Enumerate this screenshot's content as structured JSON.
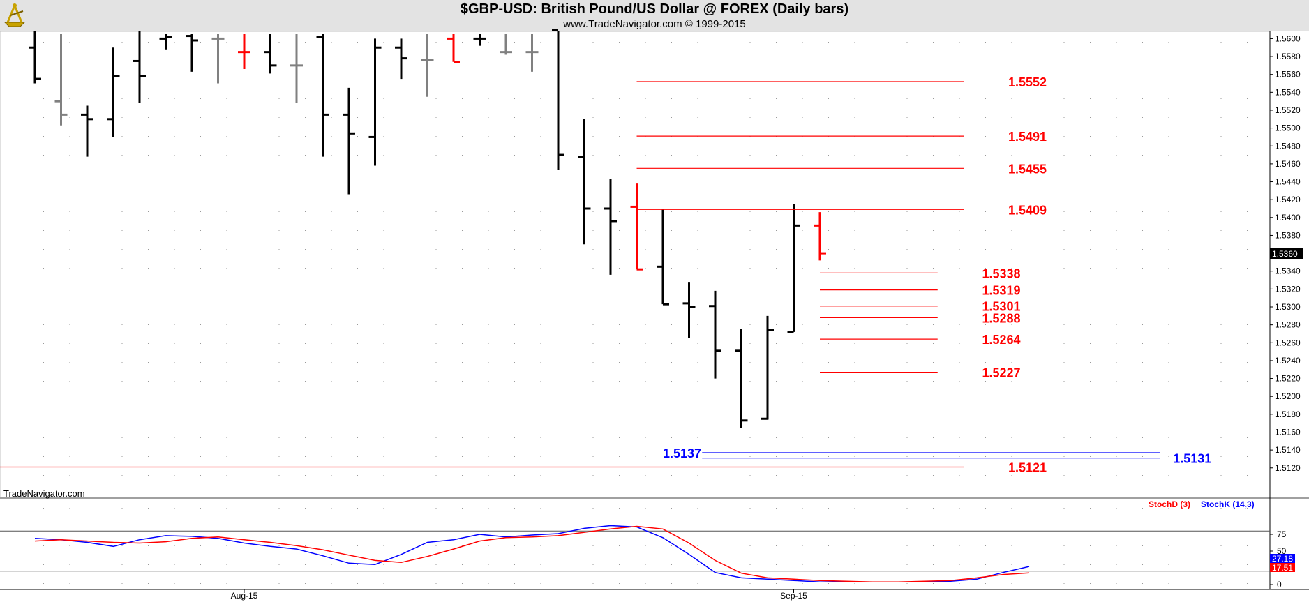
{
  "header": {
    "title": "$GBP-USD:  British Pound/US Dollar @ FOREX  (Daily bars)",
    "subtitle": "www.TradeNavigator.com © 1999-2015",
    "logo_icon": "sextant-logo-icon"
  },
  "watermark": "TradeNavigator.com",
  "colors": {
    "up": "#000000",
    "down": "#ff0000",
    "neutral": "#808080",
    "support": "#0000ff",
    "resistance": "#ff0000"
  },
  "chart_data": [
    {
      "type": "ohlc",
      "title": "$GBP-USD:  British Pound/US Dollar @ FOREX  (Daily bars)",
      "ylim": [
        1.5105,
        1.5605
      ],
      "yticks": [
        "1.5600",
        "1.5580",
        "1.5560",
        "1.5540",
        "1.5520",
        "1.5500",
        "1.5480",
        "1.5460",
        "1.5440",
        "1.5420",
        "1.5400",
        "1.5380",
        "1.5340",
        "1.5320",
        "1.5300",
        "1.5280",
        "1.5260",
        "1.5240",
        "1.5220",
        "1.5200",
        "1.5180",
        "1.5160",
        "1.5140",
        "1.5120"
      ],
      "xticks": [
        {
          "i": 8,
          "label": "Aug-15"
        },
        {
          "i": 29,
          "label": "Sep-15"
        }
      ],
      "last_price": "1.5360",
      "bars": [
        {
          "h": 1.562,
          "l": 1.555,
          "o": 1.559,
          "c": 1.5555,
          "col": "black"
        },
        {
          "h": 1.5605,
          "l": 1.5503,
          "o": 1.553,
          "c": 1.5515,
          "col": "gray"
        },
        {
          "h": 1.5525,
          "l": 1.5468,
          "o": 1.5515,
          "c": 1.551,
          "col": "black"
        },
        {
          "h": 1.559,
          "l": 1.549,
          "o": 1.551,
          "c": 1.5558,
          "col": "black"
        },
        {
          "h": 1.562,
          "l": 1.5528,
          "o": 1.5575,
          "c": 1.5558,
          "col": "black"
        },
        {
          "h": 1.5605,
          "l": 1.5588,
          "o": 1.56,
          "c": 1.5602,
          "col": "black"
        },
        {
          "h": 1.5605,
          "l": 1.5563,
          "o": 1.5603,
          "c": 1.5598,
          "col": "black"
        },
        {
          "h": 1.5605,
          "l": 1.555,
          "o": 1.56,
          "c": 1.56,
          "col": "gray"
        },
        {
          "h": 1.5605,
          "l": 1.5566,
          "o": 1.5585,
          "c": 1.5585,
          "col": "red"
        },
        {
          "h": 1.5605,
          "l": 1.5561,
          "o": 1.5585,
          "c": 1.557,
          "col": "black"
        },
        {
          "h": 1.5605,
          "l": 1.5528,
          "o": 1.557,
          "c": 1.557,
          "col": "gray"
        },
        {
          "h": 1.5605,
          "l": 1.5468,
          "o": 1.5602,
          "c": 1.5515,
          "col": "black"
        },
        {
          "h": 1.5545,
          "l": 1.5426,
          "o": 1.5515,
          "c": 1.5494,
          "col": "black"
        },
        {
          "h": 1.56,
          "l": 1.5458,
          "o": 1.549,
          "c": 1.559,
          "col": "black"
        },
        {
          "h": 1.56,
          "l": 1.5555,
          "o": 1.559,
          "c": 1.5578,
          "col": "black"
        },
        {
          "h": 1.5605,
          "l": 1.5535,
          "o": 1.5576,
          "c": 1.5576,
          "col": "gray"
        },
        {
          "h": 1.5605,
          "l": 1.5574,
          "o": 1.56,
          "c": 1.5574,
          "col": "red"
        },
        {
          "h": 1.5605,
          "l": 1.5592,
          "o": 1.56,
          "c": 1.56,
          "col": "black"
        },
        {
          "h": 1.5605,
          "l": 1.5582,
          "o": 1.5585,
          "c": 1.5585,
          "col": "gray"
        },
        {
          "h": 1.5605,
          "l": 1.5563,
          "o": 1.5585,
          "c": 1.5585,
          "col": "gray"
        },
        {
          "h": 1.562,
          "l": 1.5453,
          "o": 1.561,
          "c": 1.547,
          "col": "black"
        },
        {
          "h": 1.551,
          "l": 1.537,
          "o": 1.5468,
          "c": 1.541,
          "col": "black"
        },
        {
          "h": 1.5443,
          "l": 1.5336,
          "o": 1.541,
          "c": 1.5396,
          "col": "black"
        },
        {
          "h": 1.5438,
          "l": 1.5342,
          "o": 1.5412,
          "c": 1.5342,
          "col": "red"
        },
        {
          "h": 1.541,
          "l": 1.5303,
          "o": 1.5345,
          "c": 1.5303,
          "col": "black"
        },
        {
          "h": 1.5328,
          "l": 1.5265,
          "o": 1.5304,
          "c": 1.53,
          "col": "black"
        },
        {
          "h": 1.5318,
          "l": 1.522,
          "o": 1.5301,
          "c": 1.5251,
          "col": "black"
        },
        {
          "h": 1.5275,
          "l": 1.5165,
          "o": 1.5251,
          "c": 1.5173,
          "col": "black"
        },
        {
          "h": 1.529,
          "l": 1.5174,
          "o": 1.5175,
          "c": 1.5274,
          "col": "black"
        },
        {
          "h": 1.5415,
          "l": 1.5272,
          "o": 1.5272,
          "c": 1.5391,
          "col": "black"
        },
        {
          "h": 1.5406,
          "l": 1.5352,
          "o": 1.5391,
          "c": 1.536,
          "col": "red"
        }
      ],
      "levels": [
        {
          "value": 1.5552,
          "label": "1.5552",
          "color": "red",
          "from": 23,
          "to": 35.5,
          "label_at": 37.2
        },
        {
          "value": 1.5491,
          "label": "1.5491",
          "color": "red",
          "from": 23,
          "to": 35.5,
          "label_at": 37.2
        },
        {
          "value": 1.5455,
          "label": "1.5455",
          "color": "red",
          "from": 23,
          "to": 35.5,
          "label_at": 37.2
        },
        {
          "value": 1.5409,
          "label": "1.5409",
          "color": "red",
          "from": 23,
          "to": 35.5,
          "label_at": 37.2
        },
        {
          "value": 1.5338,
          "label": "1.5338",
          "color": "red",
          "from": 30,
          "to": 34.5,
          "label_at": 36.2
        },
        {
          "value": 1.5319,
          "label": "1.5319",
          "color": "red",
          "from": 30,
          "to": 34.5,
          "label_at": 36.2
        },
        {
          "value": 1.5301,
          "label": "1.5301",
          "color": "red",
          "from": 30,
          "to": 34.5,
          "label_at": 36.2
        },
        {
          "value": 1.5288,
          "label": "1.5288",
          "color": "red",
          "from": 30,
          "to": 34.5,
          "label_at": 36.2
        },
        {
          "value": 1.5264,
          "label": "1.5264",
          "color": "red",
          "from": 30,
          "to": 34.5,
          "label_at": 36.2
        },
        {
          "value": 1.5227,
          "label": "1.5227",
          "color": "red",
          "from": 30,
          "to": 34.5,
          "label_at": 36.2
        },
        {
          "value": 1.5137,
          "label": "1.5137",
          "color": "blue",
          "from": 25.5,
          "to": 43,
          "label_at": 24
        },
        {
          "value": 1.5131,
          "label": "1.5131",
          "color": "blue",
          "from": 25.5,
          "to": 43,
          "label_at": 43.5
        },
        {
          "value": 1.5121,
          "label": "1.5121",
          "color": "red",
          "from": -1.5,
          "to": 35.5,
          "label_at": 37.2
        }
      ]
    },
    {
      "type": "line",
      "legend": [
        {
          "name": "StochD (3)",
          "color": "red"
        },
        {
          "name": "StochK (14,3)",
          "color": "blue"
        }
      ],
      "ylim": [
        0,
        100
      ],
      "yticks": [
        75,
        50,
        25,
        0
      ],
      "reference_lines": [
        80,
        20
      ],
      "last_values": {
        "stochK": "27.18",
        "stochD": "17.51"
      },
      "series": [
        {
          "name": "StochK (14,3)",
          "color": "blue",
          "values": [
            69,
            67,
            63,
            57,
            67,
            73,
            72,
            69,
            62,
            57,
            53,
            43,
            32,
            30,
            45,
            63,
            67,
            75,
            71,
            74,
            76,
            84,
            88,
            86,
            70,
            45,
            18,
            10,
            8,
            6,
            4,
            4,
            4,
            4,
            4,
            5,
            8,
            18,
            27
          ]
        },
        {
          "name": "StochD (3)",
          "color": "red",
          "values": [
            65,
            67,
            65,
            63,
            62,
            64,
            69,
            71,
            67,
            63,
            58,
            52,
            44,
            36,
            33,
            42,
            53,
            65,
            70,
            71,
            73,
            78,
            83,
            87,
            83,
            62,
            36,
            17,
            10,
            8,
            6,
            5,
            4,
            4,
            5,
            6,
            10,
            15,
            17.51
          ]
        }
      ]
    }
  ]
}
